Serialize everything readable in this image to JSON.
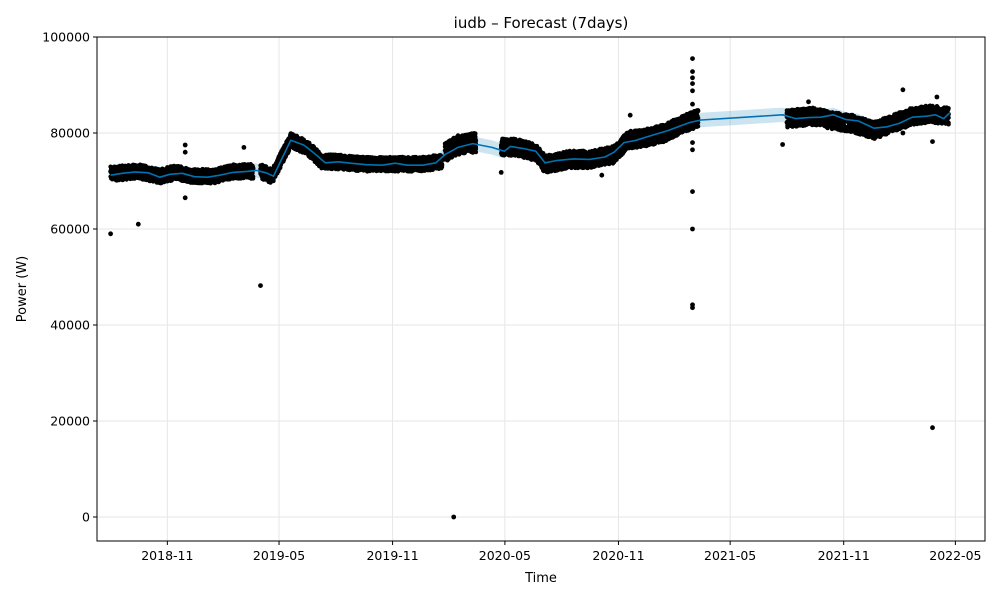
{
  "chart_data": {
    "type": "line",
    "title": "iudb – Forecast (7days)",
    "xlabel": "Time",
    "ylabel": "Power (W)",
    "xlim": [
      "2018-07-10",
      "2022-06-18"
    ],
    "ylim": [
      -5000,
      100000
    ],
    "grid": true,
    "x_ticks": [
      {
        "date": "2018-11-01",
        "label": "2018-11"
      },
      {
        "date": "2019-05-01",
        "label": "2019-05"
      },
      {
        "date": "2019-11-01",
        "label": "2019-11"
      },
      {
        "date": "2020-05-01",
        "label": "2020-05"
      },
      {
        "date": "2020-11-01",
        "label": "2020-11"
      },
      {
        "date": "2021-05-01",
        "label": "2021-05"
      },
      {
        "date": "2021-11-01",
        "label": "2021-11"
      },
      {
        "date": "2022-05-01",
        "label": "2022-05"
      }
    ],
    "y_ticks": [
      {
        "value": 0,
        "label": "0"
      },
      {
        "value": 20000,
        "label": "20000"
      },
      {
        "value": 40000,
        "label": "40000"
      },
      {
        "value": 60000,
        "label": "60000"
      },
      {
        "value": 80000,
        "label": "80000"
      },
      {
        "value": 100000,
        "label": "100000"
      }
    ],
    "series": [
      {
        "role": "observed",
        "color": "#000000",
        "segments": [
          {
            "start": "2018-08-01",
            "end": "2019-03-20",
            "spread": 1500,
            "centers": [
              [
                "2018-08-01",
                71500
              ],
              [
                "2018-09-15",
                72000
              ],
              [
                "2018-10-20",
                71000
              ],
              [
                "2018-11-15",
                71800
              ],
              [
                "2018-12-15",
                71000
              ],
              [
                "2019-01-15",
                71000
              ],
              [
                "2019-02-15",
                72000
              ],
              [
                "2019-03-20",
                72000
              ]
            ]
          },
          {
            "start": "2019-04-01",
            "end": "2020-01-20",
            "spread": 1500,
            "centers": [
              [
                "2019-04-01",
                72000
              ],
              [
                "2019-04-20",
                71000
              ],
              [
                "2019-05-20",
                78500
              ],
              [
                "2019-06-15",
                77000
              ],
              [
                "2019-07-10",
                74000
              ],
              [
                "2019-08-01",
                74000
              ],
              [
                "2019-09-15",
                73500
              ],
              [
                "2019-11-01",
                73500
              ],
              [
                "2019-12-15",
                73500
              ],
              [
                "2020-01-20",
                74000
              ]
            ]
          },
          {
            "start": "2020-01-25",
            "end": "2020-03-15",
            "spread": 2000,
            "centers": [
              [
                "2020-01-25",
                76000
              ],
              [
                "2020-02-15",
                77500
              ],
              [
                "2020-03-15",
                78000
              ]
            ]
          },
          {
            "start": "2020-04-25",
            "end": "2021-03-10",
            "spread": 1800,
            "centers": [
              [
                "2020-04-25",
                77000
              ],
              [
                "2020-05-20",
                77000
              ],
              [
                "2020-06-20",
                76000
              ],
              [
                "2020-07-05",
                73500
              ],
              [
                "2020-08-15",
                74500
              ],
              [
                "2020-09-15",
                74500
              ],
              [
                "2020-10-25",
                75500
              ],
              [
                "2020-11-15",
                78500
              ],
              [
                "2020-12-15",
                79000
              ],
              [
                "2021-01-15",
                80000
              ],
              [
                "2021-02-15",
                82000
              ],
              [
                "2021-03-10",
                83000
              ]
            ]
          },
          {
            "start": "2021-08-01",
            "end": "2022-04-20",
            "spread": 1800,
            "centers": [
              [
                "2021-08-01",
                83000
              ],
              [
                "2021-09-15",
                83500
              ],
              [
                "2021-10-15",
                82500
              ],
              [
                "2021-11-15",
                82000
              ],
              [
                "2021-12-20",
                80500
              ],
              [
                "2022-01-20",
                82000
              ],
              [
                "2022-02-20",
                83500
              ],
              [
                "2022-03-20",
                84000
              ],
              [
                "2022-04-20",
                83500
              ]
            ]
          }
        ],
        "outliers": [
          [
            "2018-08-01",
            59000
          ],
          [
            "2018-09-15",
            61000
          ],
          [
            "2018-11-30",
            66500
          ],
          [
            "2018-11-30",
            77500
          ],
          [
            "2018-11-30",
            76000
          ],
          [
            "2019-03-05",
            77000
          ],
          [
            "2019-04-01",
            48200
          ],
          [
            "2020-02-08",
            0
          ],
          [
            "2020-04-25",
            71800
          ],
          [
            "2020-10-05",
            71200
          ],
          [
            "2020-11-20",
            83700
          ],
          [
            "2021-03-01",
            67800
          ],
          [
            "2021-03-01",
            60000
          ],
          [
            "2021-03-01",
            44200
          ],
          [
            "2021-03-01",
            43600
          ],
          [
            "2021-03-01",
            95500
          ],
          [
            "2021-03-01",
            92800
          ],
          [
            "2021-03-01",
            91500
          ],
          [
            "2021-03-01",
            90300
          ],
          [
            "2021-03-01",
            88800
          ],
          [
            "2021-03-01",
            86000
          ],
          [
            "2021-03-01",
            78000
          ],
          [
            "2021-03-01",
            76500
          ],
          [
            "2021-07-25",
            77600
          ],
          [
            "2021-09-05",
            86500
          ],
          [
            "2022-02-05",
            89000
          ],
          [
            "2022-02-05",
            80000
          ],
          [
            "2022-03-25",
            18600
          ],
          [
            "2022-03-25",
            78200
          ],
          [
            "2022-04-01",
            87500
          ]
        ]
      },
      {
        "role": "forecast",
        "color": "#0072b2",
        "band_color": "#0072b2",
        "band_halfwidth": 1500,
        "points": [
          [
            "2018-08-01",
            71200
          ],
          [
            "2018-08-20",
            71600
          ],
          [
            "2018-09-10",
            71900
          ],
          [
            "2018-10-01",
            71700
          ],
          [
            "2018-10-20",
            70800
          ],
          [
            "2018-11-05",
            71400
          ],
          [
            "2018-11-25",
            71600
          ],
          [
            "2018-12-15",
            70900
          ],
          [
            "2019-01-05",
            70800
          ],
          [
            "2019-01-25",
            71200
          ],
          [
            "2019-02-15",
            71800
          ],
          [
            "2019-03-10",
            72000
          ],
          [
            "2019-03-25",
            72200
          ],
          [
            "2019-04-10",
            71700
          ],
          [
            "2019-04-22",
            71000
          ],
          [
            "2019-05-05",
            74500
          ],
          [
            "2019-05-20",
            78500
          ],
          [
            "2019-06-10",
            77500
          ],
          [
            "2019-06-25",
            76000
          ],
          [
            "2019-07-15",
            73800
          ],
          [
            "2019-08-05",
            74000
          ],
          [
            "2019-08-25",
            73700
          ],
          [
            "2019-09-20",
            73400
          ],
          [
            "2019-10-15",
            73300
          ],
          [
            "2019-11-05",
            73700
          ],
          [
            "2019-11-25",
            73300
          ],
          [
            "2019-12-20",
            73300
          ],
          [
            "2020-01-10",
            73800
          ],
          [
            "2020-01-25",
            75500
          ],
          [
            "2020-02-15",
            77000
          ],
          [
            "2020-03-10",
            77800
          ],
          [
            "2020-04-10",
            77000
          ],
          [
            "2020-04-30",
            76200
          ],
          [
            "2020-05-10",
            77200
          ],
          [
            "2020-05-30",
            76800
          ],
          [
            "2020-06-20",
            76200
          ],
          [
            "2020-07-05",
            73800
          ],
          [
            "2020-07-25",
            74300
          ],
          [
            "2020-08-20",
            74600
          ],
          [
            "2020-09-15",
            74500
          ],
          [
            "2020-10-10",
            75000
          ],
          [
            "2020-10-25",
            76000
          ],
          [
            "2020-11-10",
            78000
          ],
          [
            "2020-11-30",
            78500
          ],
          [
            "2020-12-25",
            79500
          ],
          [
            "2021-01-20",
            80500
          ],
          [
            "2021-02-10",
            81500
          ],
          [
            "2021-02-25",
            82200
          ],
          [
            "2021-03-15",
            82700
          ],
          [
            "2021-07-25",
            83800
          ],
          [
            "2021-08-15",
            83000
          ],
          [
            "2021-09-05",
            83200
          ],
          [
            "2021-09-25",
            83300
          ],
          [
            "2021-10-15",
            83800
          ],
          [
            "2021-11-05",
            82800
          ],
          [
            "2021-11-25",
            82500
          ],
          [
            "2021-12-20",
            81000
          ],
          [
            "2022-01-10",
            81300
          ],
          [
            "2022-01-30",
            82000
          ],
          [
            "2022-02-20",
            83300
          ],
          [
            "2022-03-15",
            83500
          ],
          [
            "2022-03-30",
            83800
          ],
          [
            "2022-04-12",
            83000
          ],
          [
            "2022-04-22",
            84200
          ]
        ]
      }
    ]
  }
}
